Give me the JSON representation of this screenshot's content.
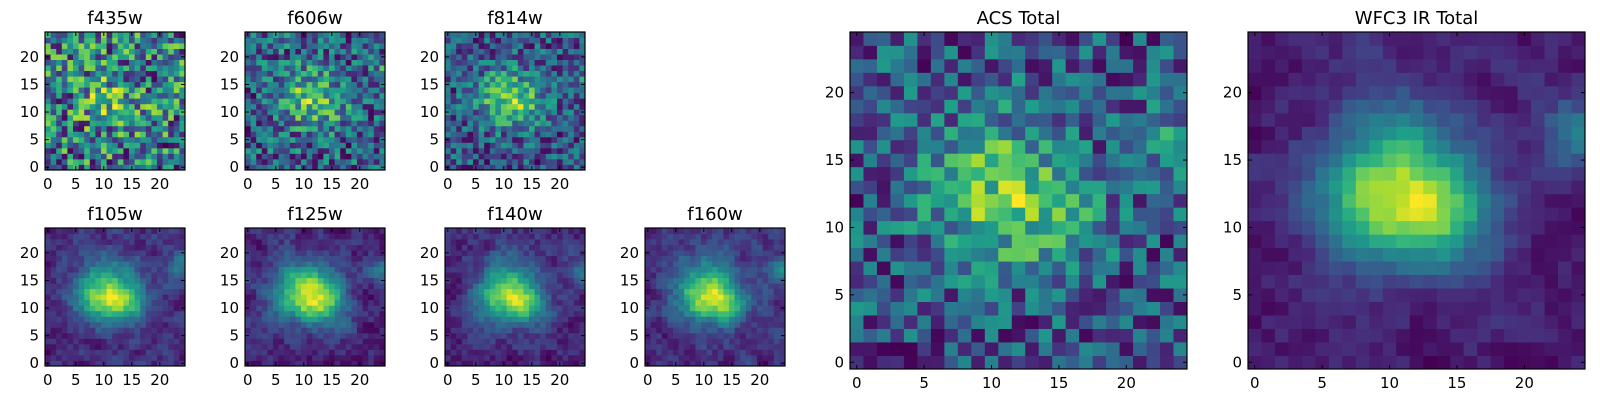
{
  "figure": {
    "colormap": "viridis",
    "panels_description_colors": {
      "low": "#440154",
      "mid": "#21918c",
      "high": "#fde725"
    }
  },
  "chart_data": [
    {
      "type": "heatmap",
      "title": "f435w",
      "grid_size": 25,
      "x_ticks": [
        0,
        5,
        10,
        15,
        20
      ],
      "y_ticks": [
        0,
        5,
        10,
        15,
        20
      ],
      "xlim": [
        -0.5,
        24.5
      ],
      "ylim": [
        -0.5,
        24.5
      ],
      "signal": "weak",
      "seed": 11
    },
    {
      "type": "heatmap",
      "title": "f606w",
      "grid_size": 25,
      "x_ticks": [
        0,
        5,
        10,
        15,
        20
      ],
      "y_ticks": [
        0,
        5,
        10,
        15,
        20
      ],
      "xlim": [
        -0.5,
        24.5
      ],
      "ylim": [
        -0.5,
        24.5
      ],
      "signal": "faint",
      "seed": 23
    },
    {
      "type": "heatmap",
      "title": "f814w",
      "grid_size": 25,
      "x_ticks": [
        0,
        5,
        10,
        15,
        20
      ],
      "y_ticks": [
        0,
        5,
        10,
        15,
        20
      ],
      "xlim": [
        -0.5,
        24.5
      ],
      "ylim": [
        -0.5,
        24.5
      ],
      "signal": "moderate",
      "seed": 37
    },
    {
      "type": "heatmap",
      "title": "f105w",
      "grid_size": 25,
      "x_ticks": [
        0,
        5,
        10,
        15,
        20
      ],
      "y_ticks": [
        0,
        5,
        10,
        15,
        20
      ],
      "xlim": [
        -0.5,
        24.5
      ],
      "ylim": [
        -0.5,
        24.5
      ],
      "signal": "strong",
      "seed": 41
    },
    {
      "type": "heatmap",
      "title": "f125w",
      "grid_size": 25,
      "x_ticks": [
        0,
        5,
        10,
        15,
        20
      ],
      "y_ticks": [
        0,
        5,
        10,
        15,
        20
      ],
      "xlim": [
        -0.5,
        24.5
      ],
      "ylim": [
        -0.5,
        24.5
      ],
      "signal": "strong",
      "seed": 53
    },
    {
      "type": "heatmap",
      "title": "f140w",
      "grid_size": 25,
      "x_ticks": [
        0,
        5,
        10,
        15,
        20
      ],
      "y_ticks": [
        0,
        5,
        10,
        15,
        20
      ],
      "xlim": [
        -0.5,
        24.5
      ],
      "ylim": [
        -0.5,
        24.5
      ],
      "signal": "strong",
      "seed": 67
    },
    {
      "type": "heatmap",
      "title": "f160w",
      "grid_size": 25,
      "x_ticks": [
        0,
        5,
        10,
        15,
        20
      ],
      "y_ticks": [
        0,
        5,
        10,
        15,
        20
      ],
      "xlim": [
        -0.5,
        24.5
      ],
      "ylim": [
        -0.5,
        24.5
      ],
      "signal": "strong",
      "seed": 79
    },
    {
      "type": "heatmap",
      "title": "ACS Total",
      "grid_size": 25,
      "x_ticks": [
        0,
        5,
        10,
        15,
        20
      ],
      "y_ticks": [
        0,
        5,
        10,
        15,
        20
      ],
      "xlim": [
        -0.5,
        24.5
      ],
      "ylim": [
        -0.5,
        24.5
      ],
      "signal": "moderate",
      "seed": 97
    },
    {
      "type": "heatmap",
      "title": "WFC3 IR Total",
      "grid_size": 25,
      "x_ticks": [
        0,
        5,
        10,
        15,
        20
      ],
      "y_ticks": [
        0,
        5,
        10,
        15,
        20
      ],
      "xlim": [
        -0.5,
        24.5
      ],
      "ylim": [
        -0.5,
        24.5
      ],
      "signal": "smooth",
      "seed": 101
    }
  ]
}
